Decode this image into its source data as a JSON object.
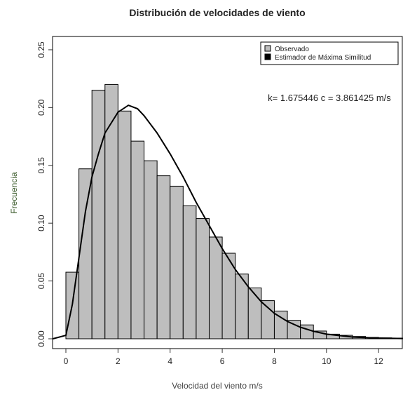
{
  "chart_data": {
    "type": "histogram",
    "title": "Distribución de velocidades de viento",
    "x_label": "Velocidad del viento  m/s",
    "y_label": "Frecuencia",
    "annotation": "k= 1.675446  c = 3.861425 m/s",
    "bins": [
      0,
      0.5,
      1,
      1.5,
      2,
      2.5,
      3,
      3.5,
      4,
      4.5,
      5,
      5.5,
      6,
      6.5,
      7,
      7.5,
      8,
      8.5,
      9,
      9.5,
      10,
      10.5,
      11,
      11.5,
      12,
      12.5,
      13
    ],
    "series": [
      {
        "name": "Observado",
        "color": "#bebebe",
        "values": [
          0.0576,
          0.147,
          0.215,
          0.22,
          0.197,
          0.171,
          0.154,
          0.141,
          0.132,
          0.115,
          0.104,
          0.088,
          0.074,
          0.056,
          0.044,
          0.033,
          0.024,
          0.016,
          0.012,
          0.0067,
          0.004,
          0.003,
          0.002,
          0.0012,
          0.0008,
          0.0006
        ]
      },
      {
        "name": "Estimador de Máxima Similitud",
        "color": "#000000",
        "x": [
          -0.5,
          0,
          0.25,
          0.5,
          0.75,
          1,
          1.25,
          1.5,
          2,
          2.4,
          2.75,
          3,
          3.5,
          4,
          4.5,
          5,
          5.5,
          6,
          6.5,
          7,
          7.5,
          8,
          8.5,
          9,
          9.5,
          10,
          11,
          12,
          12.9
        ],
        "values": [
          0,
          0.003,
          0.03,
          0.07,
          0.11,
          0.14,
          0.16,
          0.178,
          0.196,
          0.202,
          0.199,
          0.193,
          0.178,
          0.16,
          0.14,
          0.118,
          0.098,
          0.078,
          0.06,
          0.045,
          0.032,
          0.022,
          0.015,
          0.01,
          0.0065,
          0.004,
          0.0015,
          0.0006,
          0.0002
        ]
      }
    ],
    "xlim": [
      -0.511,
      12.91
    ],
    "ylim": [
      -0.0085,
      0.2615
    ],
    "xticks": [
      0,
      2,
      4,
      6,
      8,
      10,
      12
    ],
    "yticks": [
      {
        "value": 0,
        "label": "0.00"
      },
      0.05,
      {
        "value": 0.1,
        "label": "0.10"
      },
      0.15,
      {
        "value": 0.2,
        "label": "0.20"
      },
      0.25
    ],
    "legend": "top-right"
  }
}
